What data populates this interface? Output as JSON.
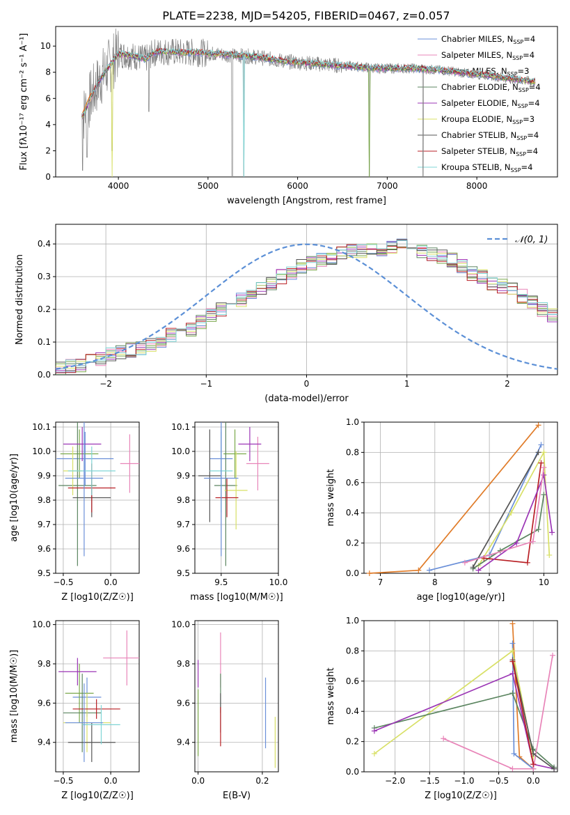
{
  "figure_title": "PLATE=2238, MJD=54205, FIBERID=0467, z=0.057",
  "colors": {
    "series": [
      "#6a8fd8",
      "#e884b8",
      "#7aa84a",
      "#5b8560",
      "#9b35b5",
      "#d8e066",
      "#555555",
      "#b81f24",
      "#7fd5d5"
    ],
    "mean_gray": "#808080",
    "orange": "#e07b28",
    "normal": "#5b8fd6"
  },
  "legend_spectrum": [
    {
      "label": "Chabrier MILES, N",
      "sub": "SSP",
      "tail": "=4"
    },
    {
      "label": "Salpeter MILES, N",
      "sub": "SSP",
      "tail": "=4"
    },
    {
      "label": "Kroupa MILES, N",
      "sub": "SSP",
      "tail": "=3"
    },
    {
      "label": "Chabrier ELODIE, N",
      "sub": "SSP",
      "tail": "=4"
    },
    {
      "label": "Salpeter ELODIE, N",
      "sub": "SSP",
      "tail": "=4"
    },
    {
      "label": "Kroupa ELODIE, N",
      "sub": "SSP",
      "tail": "=3"
    },
    {
      "label": "Chabrier STELIB, N",
      "sub": "SSP",
      "tail": "=4"
    },
    {
      "label": "Salpeter STELIB, N",
      "sub": "SSP",
      "tail": "=4"
    },
    {
      "label": "Kroupa STELIB, N",
      "sub": "SSP",
      "tail": "=4"
    }
  ],
  "chart_data": [
    {
      "id": "spectrum",
      "type": "line",
      "xlabel": "wavelength [Angstrom, rest frame]",
      "ylabel": "Flux [fλ10⁻¹⁷ erg cm⁻² s⁻¹ A⁻¹]",
      "xlim": [
        3300,
        8900
      ],
      "ylim": [
        0,
        11.5
      ],
      "xticks": [
        4000,
        5000,
        6000,
        7000,
        8000
      ],
      "yticks": [
        0,
        2,
        4,
        6,
        8,
        10
      ],
      "x": [
        3600,
        3650,
        3700,
        3800,
        3900,
        4000,
        4100,
        4200,
        4300,
        4400,
        4500,
        4700,
        4900,
        5100,
        5300,
        5500,
        5700,
        5900,
        6100,
        6300,
        6500,
        6700,
        6900,
        7100,
        7300,
        7500,
        7700,
        7900,
        8100,
        8300,
        8500,
        8700
      ],
      "y": [
        4.6,
        5.4,
        6.2,
        7.5,
        8.5,
        9.4,
        9.3,
        9.2,
        9.0,
        9.5,
        9.6,
        9.5,
        9.5,
        9.4,
        9.3,
        9.2,
        9.0,
        8.8,
        8.7,
        8.6,
        8.5,
        8.4,
        8.3,
        8.3,
        8.3,
        8.2,
        8.1,
        7.9,
        7.8,
        7.6,
        7.4,
        7.2
      ],
      "dips": [
        [
          3600,
          0.5
        ],
        [
          3650,
          1.5
        ],
        [
          3930,
          2.0
        ],
        [
          4340,
          5.0
        ],
        [
          5270,
          0.0
        ],
        [
          5400,
          0.0
        ],
        [
          6800,
          0.0
        ],
        [
          7400,
          0.0
        ]
      ]
    },
    {
      "id": "residual-histogram",
      "type": "area",
      "xlabel": "(data-model)/error",
      "ylabel": "Normed distribution",
      "xlim": [
        -2.5,
        2.5
      ],
      "ylim": [
        0,
        0.46
      ],
      "xticks": [
        -2,
        -1,
        0,
        1,
        2
      ],
      "yticks": [
        0.0,
        0.1,
        0.2,
        0.3,
        0.4
      ],
      "legend": "N(0, 1)",
      "bin_width": 0.1,
      "bin_start": -2.5,
      "values": [
        0.02,
        0.025,
        0.03,
        0.04,
        0.05,
        0.06,
        0.07,
        0.075,
        0.08,
        0.09,
        0.1,
        0.12,
        0.13,
        0.14,
        0.16,
        0.18,
        0.2,
        0.21,
        0.23,
        0.25,
        0.26,
        0.28,
        0.3,
        0.31,
        0.33,
        0.34,
        0.35,
        0.36,
        0.37,
        0.38,
        0.38,
        0.39,
        0.38,
        0.39,
        0.4,
        0.4,
        0.38,
        0.37,
        0.36,
        0.35,
        0.33,
        0.31,
        0.3,
        0.28,
        0.27,
        0.26,
        0.24,
        0.22,
        0.2,
        0.18
      ]
    },
    {
      "id": "age-vs-Z",
      "type": "scatter",
      "xlabel": "Z [log10(Z/Z☉)]",
      "ylabel": "age  [log10(age/yr)]",
      "xlim": [
        -0.58,
        0.3
      ],
      "ylim": [
        9.5,
        10.12
      ],
      "xticks": [
        -0.5,
        0.0
      ],
      "yticks": [
        9.5,
        9.6,
        9.7,
        9.8,
        9.9,
        10.0,
        10.1
      ],
      "points": [
        {
          "x": -0.27,
          "y": 9.97,
          "ex": 0.3,
          "ey": 0.11
        },
        {
          "x": 0.2,
          "y": 9.95,
          "ex": 0.1,
          "ey": 0.12
        },
        {
          "x": -0.33,
          "y": 9.99,
          "ex": 0.2,
          "ey": 0.1
        },
        {
          "x": -0.35,
          "y": 9.86,
          "ex": 0.2,
          "ey": 0.33
        },
        {
          "x": -0.3,
          "y": 10.03,
          "ex": 0.2,
          "ey": 0.07
        },
        {
          "x": -0.4,
          "y": 9.92,
          "ex": 0.1,
          "ey": 0.1
        },
        {
          "x": -0.2,
          "y": 9.81,
          "ex": 0.2,
          "ey": 0.08
        },
        {
          "x": -0.2,
          "y": 9.85,
          "ex": 0.25,
          "ey": 0.1
        },
        {
          "x": -0.2,
          "y": 9.92,
          "ex": 0.25,
          "ey": 0.1
        },
        {
          "x": -0.28,
          "y": 9.89,
          "ex": 0.2,
          "ey": 0.32
        }
      ]
    },
    {
      "id": "age-vs-mass",
      "type": "scatter",
      "xlabel": "mass [log10(M/M☉)]",
      "ylabel": "",
      "xlim": [
        9.27,
        10.0
      ],
      "ylim": [
        9.5,
        10.12
      ],
      "xticks": [
        9.5,
        10.0
      ],
      "yticks": [
        9.5,
        9.6,
        9.7,
        9.8,
        9.9,
        10.0,
        10.1
      ],
      "points": [
        {
          "x": 9.5,
          "y": 9.97,
          "ex": 0.1,
          "ey": 0.11
        },
        {
          "x": 9.82,
          "y": 9.95,
          "ex": 0.1,
          "ey": 0.11
        },
        {
          "x": 9.62,
          "y": 9.99,
          "ex": 0.1,
          "ey": 0.1
        },
        {
          "x": 9.54,
          "y": 9.86,
          "ex": 0.1,
          "ey": 0.33
        },
        {
          "x": 9.75,
          "y": 10.03,
          "ex": 0.1,
          "ey": 0.07
        },
        {
          "x": 9.63,
          "y": 9.84,
          "ex": 0.1,
          "ey": 0.16
        },
        {
          "x": 9.4,
          "y": 9.9,
          "ex": 0.1,
          "ey": 0.19
        },
        {
          "x": 9.55,
          "y": 9.81,
          "ex": 0.1,
          "ey": 0.08
        },
        {
          "x": 9.5,
          "y": 9.92,
          "ex": 0.1,
          "ey": 0.17
        },
        {
          "x": 9.5,
          "y": 9.89,
          "ex": 0.15,
          "ey": 0.32
        }
      ]
    },
    {
      "id": "mass-weight-vs-age",
      "type": "line",
      "xlabel": "age  [log10(age/yr)]",
      "ylabel": "mass weight",
      "xlim": [
        6.7,
        10.25
      ],
      "ylim": [
        0.0,
        1.0
      ],
      "xticks": [
        7,
        8,
        9,
        10
      ],
      "yticks": [
        0.0,
        0.2,
        0.4,
        0.6,
        0.8,
        1.0
      ],
      "series": [
        {
          "color": "#e07b28",
          "x": [
            6.8,
            7.7,
            9.9
          ],
          "y": [
            0.0,
            0.02,
            0.98
          ]
        },
        {
          "color": "#6a8fd8",
          "x": [
            7.9,
            9.0,
            9.95
          ],
          "y": [
            0.02,
            0.12,
            0.85
          ]
        },
        {
          "color": "#d8e066",
          "x": [
            8.8,
            9.4,
            10.0,
            10.1
          ],
          "y": [
            0.05,
            0.4,
            0.8,
            0.12
          ]
        },
        {
          "color": "#5b8560",
          "x": [
            8.7,
            9.2,
            9.9,
            10.0
          ],
          "y": [
            0.03,
            0.15,
            0.29,
            0.52
          ]
        },
        {
          "color": "#b81f24",
          "x": [
            8.9,
            9.7,
            9.95
          ],
          "y": [
            0.1,
            0.07,
            0.73
          ]
        },
        {
          "color": "#9b35b5",
          "x": [
            8.8,
            9.5,
            10.0,
            10.15
          ],
          "y": [
            0.02,
            0.2,
            0.65,
            0.27
          ]
        },
        {
          "color": "#555555",
          "x": [
            8.7,
            9.9
          ],
          "y": [
            0.04,
            0.8
          ]
        },
        {
          "color": "#e884b8",
          "x": [
            8.55,
            9.8,
            10.0
          ],
          "y": [
            0.07,
            0.21,
            0.7
          ]
        }
      ]
    },
    {
      "id": "mass-vs-Z",
      "type": "scatter",
      "xlabel": "Z [log10(Z/Z☉)]",
      "ylabel": "mass [log10(M/M☉)]",
      "xlim": [
        -0.58,
        0.3
      ],
      "ylim": [
        9.25,
        10.02
      ],
      "xticks": [
        -0.5,
        0.0
      ],
      "yticks": [
        9.4,
        9.6,
        9.8,
        10.0
      ],
      "points": [
        {
          "x": -0.25,
          "y": 9.63,
          "ex": 0.15,
          "ey": 0.1
        },
        {
          "x": 0.17,
          "y": 9.83,
          "ex": 0.25,
          "ey": 0.14
        },
        {
          "x": -0.33,
          "y": 9.65,
          "ex": 0.15,
          "ey": 0.15
        },
        {
          "x": -0.3,
          "y": 9.55,
          "ex": 0.2,
          "ey": 0.2
        },
        {
          "x": -0.35,
          "y": 9.76,
          "ex": 0.2,
          "ey": 0.07
        },
        {
          "x": -0.25,
          "y": 9.5,
          "ex": 0.25,
          "ey": 0.15
        },
        {
          "x": -0.2,
          "y": 9.4,
          "ex": 0.25,
          "ey": 0.1
        },
        {
          "x": -0.15,
          "y": 9.57,
          "ex": 0.25,
          "ey": 0.05
        },
        {
          "x": -0.1,
          "y": 9.49,
          "ex": 0.2,
          "ey": 0.1
        },
        {
          "x": -0.28,
          "y": 9.5,
          "ex": 0.2,
          "ey": 0.2
        }
      ]
    },
    {
      "id": "mass-vs-EBV",
      "type": "scatter",
      "xlabel": "E(B-V)",
      "ylabel": "",
      "xlim": [
        -0.01,
        0.25
      ],
      "ylim": [
        9.25,
        10.02
      ],
      "xticks": [
        0.0,
        0.2
      ],
      "yticks": [
        9.4,
        9.6,
        9.8,
        10.0
      ],
      "points": [
        {
          "x": 0.21,
          "y": 9.55,
          "ey": 0.18
        },
        {
          "x": 0.07,
          "y": 9.82,
          "ey": 0.14
        },
        {
          "x": 0.0,
          "y": 9.5,
          "ey": 0.17
        },
        {
          "x": 0.07,
          "y": 9.65,
          "ey": 0.1
        },
        {
          "x": 0.0,
          "y": 9.75,
          "ey": 0.07
        },
        {
          "x": 0.24,
          "y": 9.4,
          "ey": 0.13
        },
        {
          "x": 0.07,
          "y": 9.55,
          "ey": 0.1
        },
        {
          "x": 0.07,
          "y": 9.48,
          "ey": 0.1
        }
      ]
    },
    {
      "id": "mass-weight-vs-Z",
      "type": "line",
      "xlabel": "Z [log10(Z/Z☉)]",
      "ylabel": "mass weight",
      "xlim": [
        -2.45,
        0.35
      ],
      "ylim": [
        0.0,
        1.0
      ],
      "xticks": [
        -2.0,
        -1.5,
        -1.0,
        -0.5,
        0.0
      ],
      "yticks": [
        0.0,
        0.2,
        0.4,
        0.6,
        0.8,
        1.0
      ],
      "series": [
        {
          "color": "#e07b28",
          "x": [
            -0.3,
            -0.2,
            0.0
          ],
          "y": [
            0.98,
            0.1,
            0.02
          ]
        },
        {
          "color": "#6a8fd8",
          "x": [
            -0.3,
            -0.28,
            0.0
          ],
          "y": [
            0.85,
            0.12,
            0.02
          ]
        },
        {
          "color": "#d8e066",
          "x": [
            -2.3,
            -0.3,
            0.0
          ],
          "y": [
            0.12,
            0.8,
            0.1
          ]
        },
        {
          "color": "#5b8560",
          "x": [
            -2.3,
            -0.3,
            0.0,
            0.3
          ],
          "y": [
            0.29,
            0.52,
            0.15,
            0.03
          ]
        },
        {
          "color": "#9b35b5",
          "x": [
            -2.3,
            -0.3,
            0.0,
            0.3
          ],
          "y": [
            0.27,
            0.65,
            0.05,
            0.02
          ]
        },
        {
          "color": "#e884b8",
          "x": [
            -1.3,
            -0.3,
            0.0,
            0.28
          ],
          "y": [
            0.22,
            0.02,
            0.02,
            0.77
          ]
        },
        {
          "color": "#555555",
          "x": [
            -0.3,
            0.0,
            0.3
          ],
          "y": [
            0.74,
            0.12,
            0.02
          ]
        },
        {
          "color": "#b81f24",
          "x": [
            -0.3,
            0.0
          ],
          "y": [
            0.73,
            0.05
          ]
        }
      ]
    }
  ]
}
